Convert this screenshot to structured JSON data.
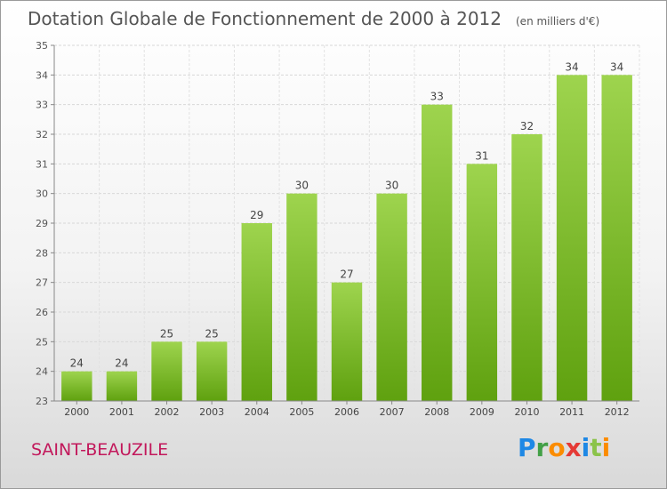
{
  "header": {
    "title": "Dotation Globale de Fonctionnement de 2000 à 2012",
    "unit": "(en milliers d'€)"
  },
  "commune": "SAINT-BEAUZILE",
  "logo": {
    "text": "Proxiti",
    "letters": [
      "P",
      "r",
      "o",
      "x",
      "i",
      "t",
      "i"
    ],
    "colors": [
      "#1e88e5",
      "#43a047",
      "#fb8c00",
      "#e53935",
      "#1e88e5",
      "#8bc34a",
      "#fb8c00"
    ]
  },
  "chart_data": {
    "type": "bar",
    "categories": [
      "2000",
      "2001",
      "2002",
      "2003",
      "2004",
      "2005",
      "2006",
      "2007",
      "2008",
      "2009",
      "2010",
      "2011",
      "2012"
    ],
    "values": [
      24,
      24,
      25,
      25,
      29,
      30,
      27,
      30,
      33,
      31,
      32,
      34,
      34
    ],
    "ylim": [
      23,
      35
    ],
    "yticks": [
      23,
      24,
      25,
      26,
      27,
      28,
      29,
      30,
      31,
      32,
      33,
      34,
      35
    ],
    "grid": true,
    "bar_color_top": "#9ed44e",
    "bar_color_bottom": "#5fa10f"
  }
}
